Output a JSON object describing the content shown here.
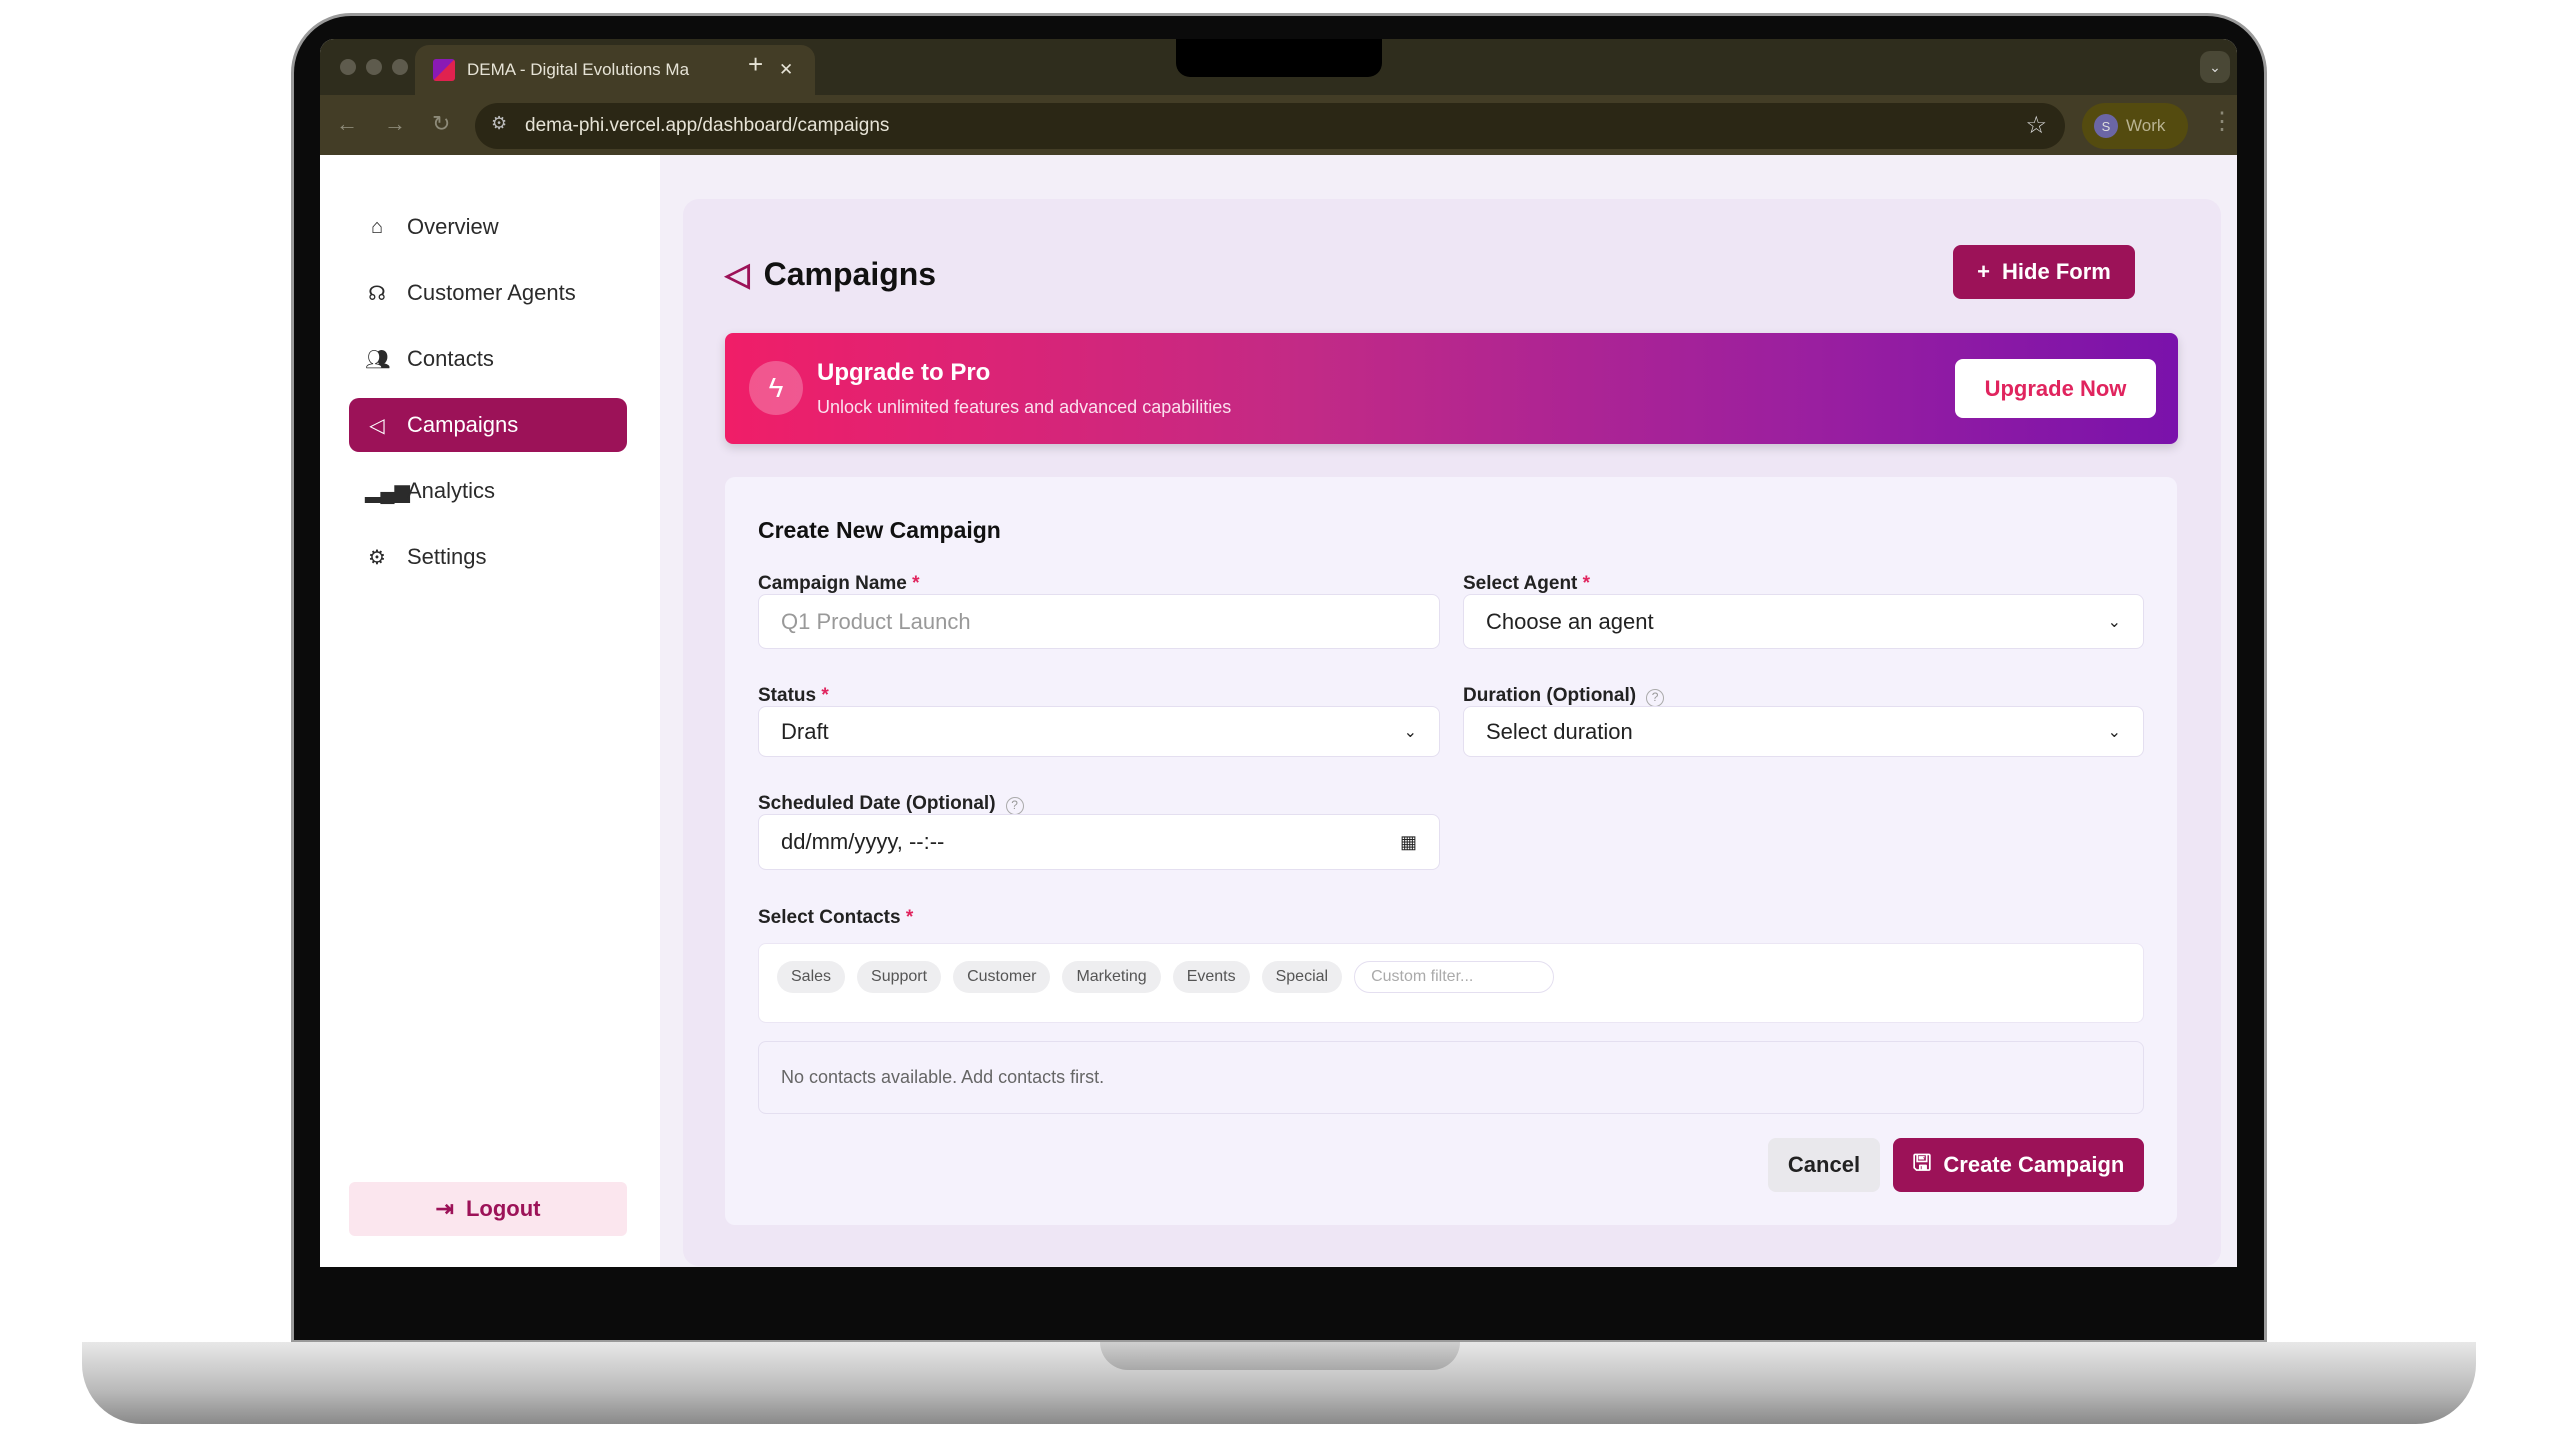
{
  "browser": {
    "tab_title": "DEMA - Digital Evolutions Ma",
    "url": "dema-phi.vercel.app/dashboard/campaigns",
    "profile_initial": "S",
    "profile_label": "Work"
  },
  "sidebar": {
    "items": [
      {
        "label": "Overview",
        "icon": "home-icon"
      },
      {
        "label": "Customer Agents",
        "icon": "headset-icon"
      },
      {
        "label": "Contacts",
        "icon": "users-icon"
      },
      {
        "label": "Campaigns",
        "icon": "megaphone-icon",
        "active": true
      },
      {
        "label": "Analytics",
        "icon": "bar-chart-icon"
      },
      {
        "label": "Settings",
        "icon": "gear-icon"
      }
    ],
    "logout": "Logout"
  },
  "header": {
    "title": "Campaigns",
    "hide_form": "Hide Form"
  },
  "banner": {
    "title": "Upgrade to Pro",
    "subtitle": "Unlock unlimited features and advanced capabilities",
    "button": "Upgrade Now"
  },
  "form": {
    "title": "Create New Campaign",
    "campaign_name": {
      "label": "Campaign Name",
      "placeholder": "Q1 Product Launch"
    },
    "agent": {
      "label": "Select Agent",
      "value": "Choose an agent"
    },
    "status": {
      "label": "Status",
      "value": "Draft"
    },
    "duration": {
      "label": "Duration (Optional)",
      "value": "Select duration"
    },
    "scheduled": {
      "label": "Scheduled Date (Optional)",
      "placeholder": "dd/mm/yyyy, --:--"
    },
    "contacts": {
      "label": "Select Contacts",
      "chips": [
        "Sales",
        "Support",
        "Customer",
        "Marketing",
        "Events",
        "Special"
      ],
      "filter_placeholder": "Custom filter...",
      "empty": "No contacts available. Add contacts first."
    },
    "cancel": "Cancel",
    "submit": "Create Campaign"
  },
  "colors": {
    "brand": "#9c1258",
    "banner_start": "#f01e68",
    "banner_end": "#7a12ab"
  }
}
